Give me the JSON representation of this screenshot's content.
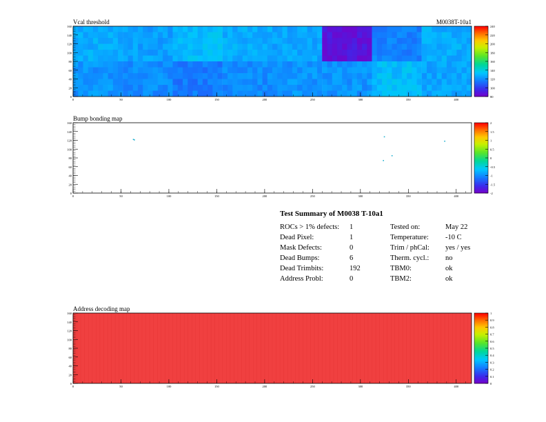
{
  "chart_data": [
    {
      "type": "heatmap",
      "title": "Vcal threshold",
      "subtitle": "M0038T-10a1",
      "x_ticks": [
        "0",
        "50",
        "100",
        "150",
        "200",
        "250",
        "300",
        "350",
        "400"
      ],
      "y_ticks": [
        "0",
        "20",
        "40",
        "60",
        "80",
        "100",
        "120",
        "140",
        "160"
      ],
      "xlim": [
        0,
        416
      ],
      "ylim": [
        0,
        160
      ],
      "rows": 2,
      "cols": 8,
      "roc_values": [
        [
          128,
          125,
          132,
          128,
          126,
          88,
          118,
          128
        ],
        [
          122,
          120,
          116,
          120,
          122,
          122,
          132,
          126
        ]
      ],
      "color_scale": {
        "min": 80,
        "max": 240,
        "ticks": [
          "80",
          "100",
          "120",
          "140",
          "160",
          "180",
          "200",
          "220",
          "240"
        ]
      }
    },
    {
      "type": "heatmap",
      "title": "Bump bonding map",
      "x_ticks": [
        "0",
        "50",
        "100",
        "150",
        "200",
        "250",
        "300",
        "350",
        "400"
      ],
      "y_ticks": [
        "0",
        "20",
        "40",
        "60",
        "80",
        "100",
        "120",
        "140",
        "160"
      ],
      "xlim": [
        0,
        416
      ],
      "ylim": [
        0,
        160
      ],
      "dead_bumps": [
        [
          63,
          122
        ],
        [
          64,
          121
        ],
        [
          325,
          128
        ],
        [
          324,
          74
        ],
        [
          333,
          85
        ],
        [
          388,
          118
        ]
      ],
      "color_scale": {
        "min": -2,
        "max": 2,
        "ticks": [
          "-2",
          "-1.5",
          "-1",
          "-0.5",
          "0",
          "0.5",
          "1",
          "1.5",
          "2"
        ]
      }
    },
    {
      "type": "heatmap",
      "title": "Address decoding map",
      "x_ticks": [
        "0",
        "50",
        "100",
        "150",
        "200",
        "250",
        "300",
        "350",
        "400"
      ],
      "y_ticks": [
        "0",
        "20",
        "40",
        "60",
        "80",
        "100",
        "120",
        "140",
        "160"
      ],
      "xlim": [
        0,
        416
      ],
      "ylim": [
        0,
        160
      ],
      "fill_value": 1,
      "color_scale": {
        "min": 0,
        "max": 1,
        "ticks": [
          "0",
          "0.1",
          "0.2",
          "0.3",
          "0.4",
          "0.5",
          "0.6",
          "0.7",
          "0.8",
          "0.9",
          "1"
        ]
      }
    }
  ],
  "summary": {
    "title": "Test Summary of M0038      T-10a1",
    "left": [
      {
        "label": "ROCs > 1% defects:",
        "value": "1"
      },
      {
        "label": "Dead Pixel:",
        "value": "1"
      },
      {
        "label": "Mask Defects:",
        "value": "0"
      },
      {
        "label": "Dead Bumps:",
        "value": "6"
      },
      {
        "label": "Dead Trimbits:",
        "value": "192"
      },
      {
        "label": "Address Probl:",
        "value": "0"
      }
    ],
    "right": [
      {
        "label": "Tested on:",
        "value": "May 22"
      },
      {
        "label": "Temperature:",
        "value": "-10 C"
      },
      {
        "label": "Trim / phCal:",
        "value": "yes / yes"
      },
      {
        "label": "Therm. cycl.:",
        "value": "no"
      },
      {
        "label": "TBM0:",
        "value": "ok"
      },
      {
        "label": "TBM2:",
        "value": "ok"
      }
    ]
  }
}
